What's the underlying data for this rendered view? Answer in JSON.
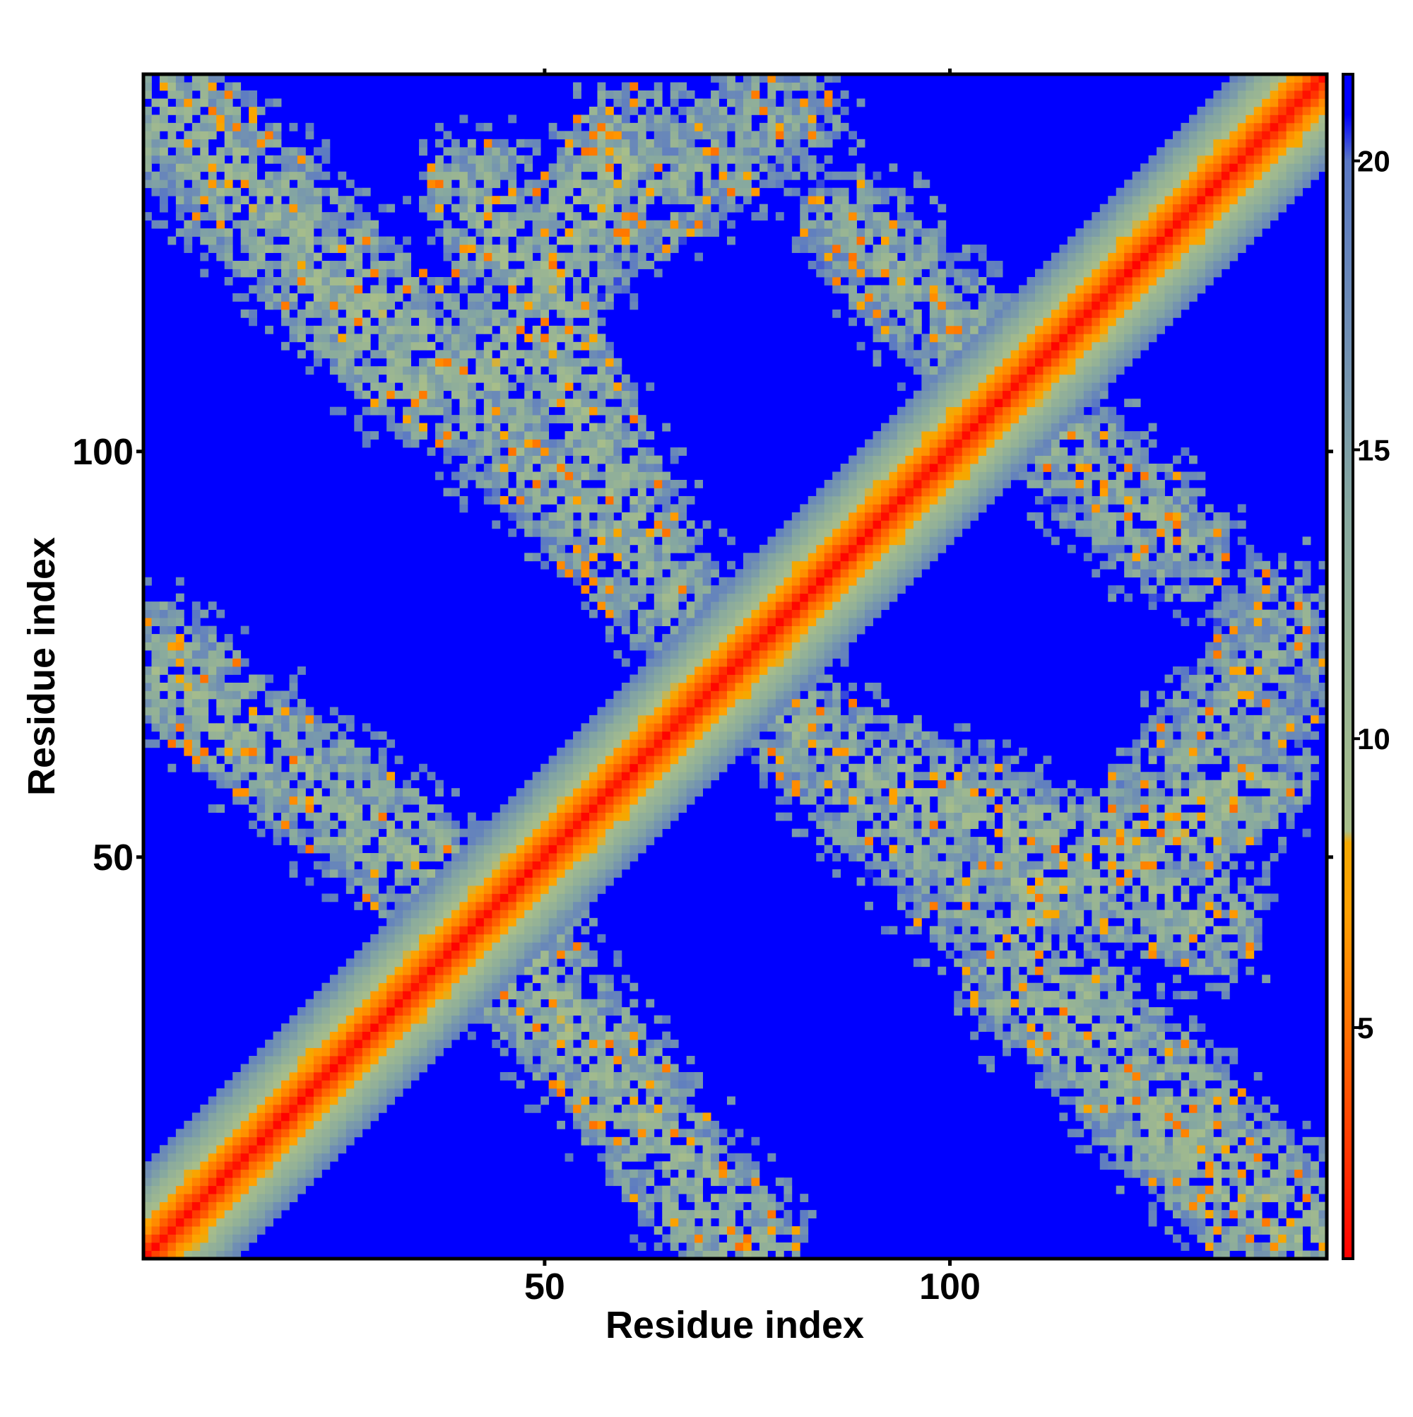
{
  "chart_data": {
    "type": "heatmap",
    "title": "",
    "xlabel": "Residue index",
    "ylabel": "Residue index",
    "n_residues": 146,
    "xlim": [
      1,
      146
    ],
    "ylim": [
      1,
      146
    ],
    "x_ticks": [
      50,
      100
    ],
    "y_ticks": [
      50,
      100
    ],
    "x_tick_labels": [
      "50",
      "100"
    ],
    "y_tick_labels": [
      "50",
      "100"
    ],
    "colorbar": {
      "range": [
        1,
        21.5
      ],
      "ticks": [
        5,
        10,
        15,
        20
      ],
      "tick_labels": [
        "5",
        "10",
        "15",
        "20"
      ],
      "stops": [
        {
          "value": 1,
          "color": "#ff0000"
        },
        {
          "value": 3,
          "color": "#ff3a00"
        },
        {
          "value": 5,
          "color": "#ff7000"
        },
        {
          "value": 7,
          "color": "#ffa000"
        },
        {
          "value": 8.2,
          "color": "#f5a800"
        },
        {
          "value": 8.4,
          "color": "#a8be8a"
        },
        {
          "value": 11,
          "color": "#98b494"
        },
        {
          "value": 14,
          "color": "#86a8a0"
        },
        {
          "value": 17,
          "color": "#6f8eb4"
        },
        {
          "value": 20,
          "color": "#5a78c4"
        },
        {
          "value": 20.8,
          "color": "#0000ff"
        },
        {
          "value": 21.5,
          "color": "#0000ff"
        }
      ]
    },
    "background_color": "#0000ff",
    "diagonal_band": {
      "axis": "y = x",
      "core_value": 1,
      "half_width": 11
    },
    "contact_regions": [
      {
        "description": "anti-diagonal arm top-left",
        "from": [
          1,
          143
        ],
        "to": [
          35,
          108
        ],
        "value_mean": 11
      },
      {
        "description": "arch",
        "from": [
          45,
          110
        ],
        "to": [
          60,
          138
        ],
        "value_mean": 10
      },
      {
        "description": "arch",
        "from": [
          60,
          138
        ],
        "to": [
          80,
          140
        ],
        "value_mean": 13
      },
      {
        "description": "upper right region",
        "from": [
          88,
          128
        ],
        "to": [
          112,
          103
        ],
        "value_mean": 12
      },
      {
        "description": "anti-diagonal arm lower-left",
        "from": [
          1,
          75
        ],
        "to": [
          45,
          40
        ],
        "value_mean": 11
      },
      {
        "description": "cross branch",
        "from": [
          45,
          40
        ],
        "to": [
          75,
          1
        ],
        "value_mean": 11
      },
      {
        "description": "central band",
        "from": [
          42,
          105
        ],
        "to": [
          85,
          63
        ],
        "value_mean": 12
      },
      {
        "description": "lower right band",
        "from": [
          88,
          62
        ],
        "to": [
          132,
          42
        ],
        "value_mean": 11
      },
      {
        "description": "right arch",
        "from": [
          125,
          55
        ],
        "to": [
          142,
          78
        ],
        "value_mean": 12
      },
      {
        "description": "lower right arm",
        "from": [
          108,
          40
        ],
        "to": [
          144,
          3
        ],
        "value_mean": 11
      }
    ],
    "grid": false,
    "legend": "colorbar right"
  }
}
